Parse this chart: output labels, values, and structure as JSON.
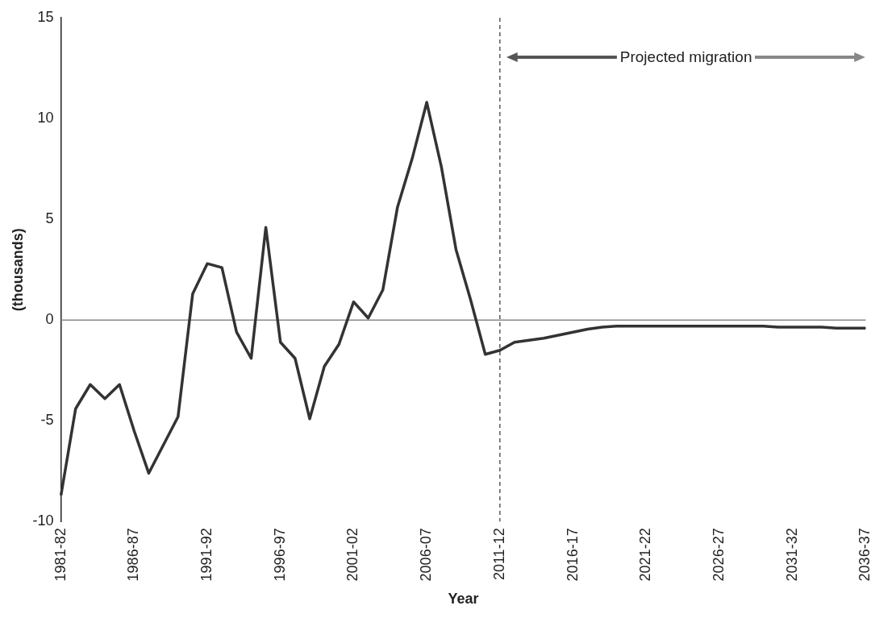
{
  "chart_data": {
    "type": "line",
    "xlabel": "Year",
    "ylabel": "(thousands)",
    "categories": [
      "1981-82",
      null,
      null,
      null,
      null,
      "1986-87",
      null,
      null,
      null,
      null,
      "1991-92",
      null,
      null,
      null,
      null,
      "1996-97",
      null,
      null,
      null,
      null,
      "2001-02",
      null,
      null,
      null,
      null,
      "2006-07",
      null,
      null,
      null,
      null,
      "2011-12",
      null,
      null,
      null,
      null,
      "2016-17",
      null,
      null,
      null,
      null,
      "2021-22",
      null,
      null,
      null,
      null,
      "2026-27",
      null,
      null,
      null,
      null,
      "2031-32",
      null,
      null,
      null,
      null,
      "2036-37"
    ],
    "series": [
      {
        "color": "#333333",
        "values": [
          -8.7,
          -4.4,
          -3.2,
          -3.9,
          -3.2,
          -5.5,
          -7.6,
          -6.2,
          -4.8,
          1.3,
          2.8,
          2.6,
          -0.6,
          -1.9,
          4.6,
          -1.1,
          -1.9,
          -4.9,
          -2.3,
          -1.2,
          0.9,
          0.1,
          1.5,
          5.6,
          8.0,
          10.8,
          7.6,
          3.5,
          1.0,
          -1.7,
          -1.5,
          -1.1,
          -1.0,
          -0.9,
          -0.75,
          -0.6,
          -0.45,
          -0.35,
          -0.3,
          -0.3,
          -0.3,
          -0.3,
          -0.3,
          -0.3,
          -0.3,
          -0.3,
          -0.3,
          -0.3,
          -0.3,
          -0.35,
          -0.35,
          -0.35,
          -0.35,
          -0.4,
          -0.4,
          -0.4
        ]
      }
    ],
    "ylim": [
      -10,
      15
    ],
    "yticks": [
      -10,
      -5,
      0,
      5,
      10,
      15
    ],
    "grid": false,
    "legend": false,
    "marker": "none",
    "line_style": "solid",
    "ref_lines": [
      {
        "axis": "x",
        "value": "2011-12",
        "color": "#333333",
        "line_style": "dashed"
      },
      {
        "axis": "y",
        "value": 0,
        "color": "#888888",
        "line_style": "solid"
      }
    ],
    "annotations": [
      "Projected migration"
    ]
  }
}
